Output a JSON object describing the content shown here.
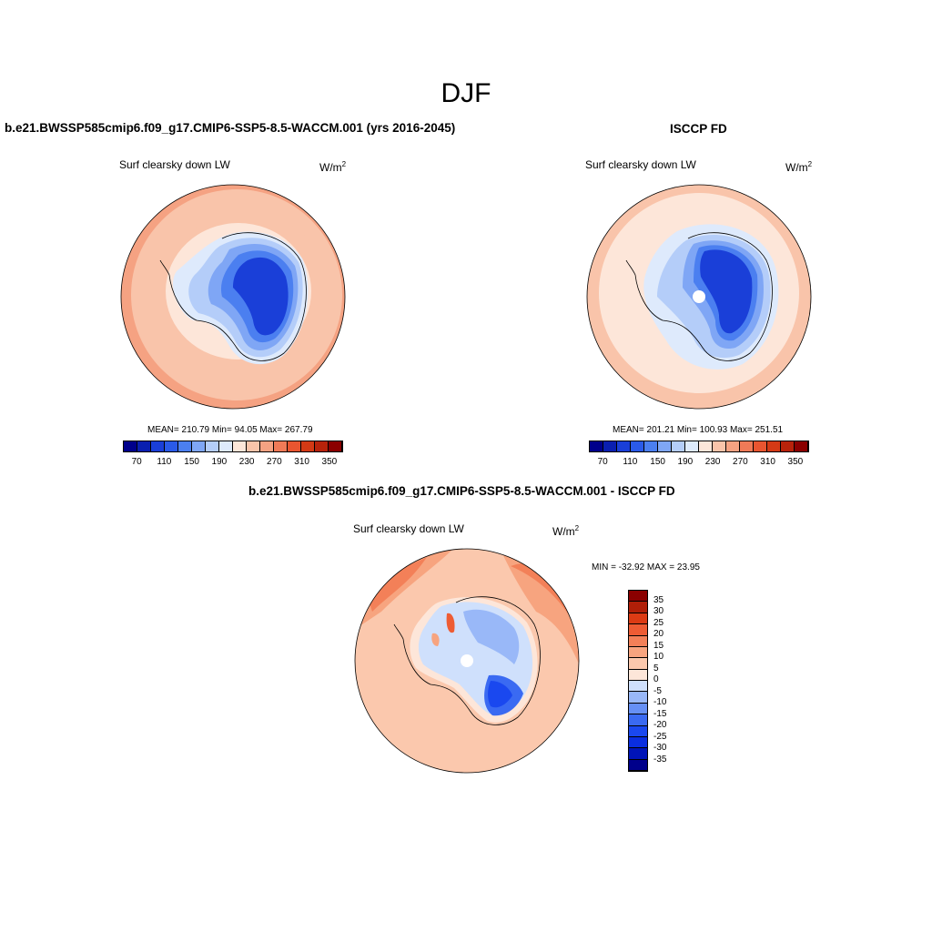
{
  "main_title": "DJF",
  "units_base": "W/m",
  "units_exp": "2",
  "colors": {
    "abs_scale": [
      "#00008b",
      "#0a1fb0",
      "#1a3fd8",
      "#2a5ae8",
      "#4b7ff0",
      "#7fa6f5",
      "#b4cdf9",
      "#deeafc",
      "#fde6d9",
      "#f9c4aa",
      "#f5a282",
      "#ef7a57",
      "#e95530",
      "#d43a15",
      "#b8230b",
      "#8b0000"
    ],
    "diff_scale": [
      "#00008b",
      "#0014b8",
      "#0a2ee0",
      "#1a48ef",
      "#3a6af2",
      "#6690f5",
      "#99b8f8",
      "#cfe0fc",
      "#fde6d9",
      "#fbc8ad",
      "#f7a47f",
      "#f38058",
      "#ee5c34",
      "#dc3b14",
      "#b01f08",
      "#8b0000"
    ]
  },
  "panels": {
    "left": {
      "title": "b.e21.BWSSP585cmip6.f09_g17.CMIP6-SSP5-8.5-WACCM.001 (yrs 2016-2045)",
      "subtitle": "Surf clearsky down LW",
      "stats": "MEAN= 210.79  Min=  94.05  Max= 267.79",
      "ticks": [
        "70",
        "110",
        "150",
        "190",
        "230",
        "270",
        "310",
        "350"
      ]
    },
    "right": {
      "title": "ISCCP FD",
      "subtitle": "Surf clearsky down LW",
      "stats": "MEAN= 201.21  Min= 100.93  Max= 251.51",
      "ticks": [
        "70",
        "110",
        "150",
        "190",
        "230",
        "270",
        "310",
        "350"
      ]
    },
    "diff": {
      "title": "b.e21.BWSSP585cmip6.f09_g17.CMIP6-SSP5-8.5-WACCM.001 - ISCCP FD",
      "subtitle": "Surf clearsky down LW",
      "stats": "MIN = -32.92 MAX =  23.95",
      "ticks": [
        "35",
        "30",
        "25",
        "20",
        "15",
        "10",
        "5",
        "0",
        "-5",
        "-10",
        "-15",
        "-20",
        "-25",
        "-30",
        "-35"
      ]
    }
  }
}
